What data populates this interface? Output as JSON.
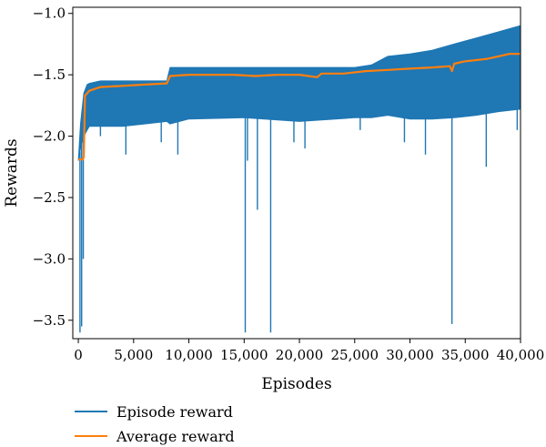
{
  "chart_data": {
    "type": "line",
    "title": "",
    "xlabel": "Episodes",
    "ylabel": "Rewards",
    "xlim": [
      -500,
      40000
    ],
    "ylim": [
      -3.65,
      -0.95
    ],
    "xticks": [
      0,
      5000,
      10000,
      15000,
      20000,
      25000,
      30000,
      35000,
      40000
    ],
    "xtick_labels": [
      "0",
      "5,000",
      "10,000",
      "15,000",
      "20,000",
      "25,000",
      "30,000",
      "35,000",
      "40,000"
    ],
    "yticks": [
      -1.0,
      -1.5,
      -2.0,
      -2.5,
      -3.0,
      -3.5
    ],
    "ytick_labels": [
      "−1.0",
      "−1.5",
      "−2.0",
      "−2.5",
      "−3.0",
      "−3.5"
    ],
    "grid": false,
    "legend": {
      "position": "bottom-left-outside"
    },
    "series": [
      {
        "name": "Episode reward",
        "color": "#1f77b4",
        "band": {
          "x": [
            0,
            200,
            500,
            800,
            1000,
            2000,
            4000,
            6000,
            8000,
            8300,
            10000,
            15000,
            20000,
            25000,
            26500,
            28000,
            30000,
            32000,
            34000,
            36000,
            38000,
            40000
          ],
          "upper": [
            -2.2,
            -1.9,
            -1.65,
            -1.58,
            -1.57,
            -1.55,
            -1.55,
            -1.55,
            -1.55,
            -1.44,
            -1.44,
            -1.44,
            -1.44,
            -1.44,
            -1.42,
            -1.35,
            -1.33,
            -1.3,
            -1.25,
            -1.2,
            -1.15,
            -1.1
          ],
          "lower": [
            -2.2,
            -2.1,
            -2.0,
            -1.95,
            -1.92,
            -1.92,
            -1.92,
            -1.9,
            -1.88,
            -1.9,
            -1.86,
            -1.85,
            -1.88,
            -1.85,
            -1.85,
            -1.83,
            -1.86,
            -1.86,
            -1.85,
            -1.83,
            -1.8,
            -1.78
          ]
        },
        "spikes": [
          {
            "x": 150,
            "y": -3.6
          },
          {
            "x": 300,
            "y": -3.55
          },
          {
            "x": 450,
            "y": -3.0
          },
          {
            "x": 2000,
            "y": -2.0
          },
          {
            "x": 4300,
            "y": -2.15
          },
          {
            "x": 7500,
            "y": -2.05
          },
          {
            "x": 9000,
            "y": -2.15
          },
          {
            "x": 15100,
            "y": -3.6
          },
          {
            "x": 15300,
            "y": -2.2
          },
          {
            "x": 16200,
            "y": -2.6
          },
          {
            "x": 17400,
            "y": -3.6
          },
          {
            "x": 19500,
            "y": -2.05
          },
          {
            "x": 20500,
            "y": -2.1
          },
          {
            "x": 25500,
            "y": -1.95
          },
          {
            "x": 29500,
            "y": -2.05
          },
          {
            "x": 31400,
            "y": -2.15
          },
          {
            "x": 33800,
            "y": -3.53
          },
          {
            "x": 36900,
            "y": -2.25
          },
          {
            "x": 39700,
            "y": -1.95
          }
        ]
      },
      {
        "name": "Average reward",
        "color": "#ff7f0e",
        "points": [
          [
            0,
            -2.19
          ],
          [
            400,
            -2.19
          ],
          [
            500,
            -2.17
          ],
          [
            600,
            -1.67
          ],
          [
            800,
            -1.65
          ],
          [
            1000,
            -1.63
          ],
          [
            2000,
            -1.6
          ],
          [
            4000,
            -1.59
          ],
          [
            6000,
            -1.58
          ],
          [
            8000,
            -1.57
          ],
          [
            8300,
            -1.51
          ],
          [
            10000,
            -1.5
          ],
          [
            12000,
            -1.5
          ],
          [
            14000,
            -1.5
          ],
          [
            16000,
            -1.51
          ],
          [
            18000,
            -1.5
          ],
          [
            20000,
            -1.5
          ],
          [
            21600,
            -1.52
          ],
          [
            22000,
            -1.49
          ],
          [
            24000,
            -1.49
          ],
          [
            26000,
            -1.47
          ],
          [
            28000,
            -1.46
          ],
          [
            30000,
            -1.45
          ],
          [
            32000,
            -1.44
          ],
          [
            33600,
            -1.43
          ],
          [
            33800,
            -1.47
          ],
          [
            34000,
            -1.41
          ],
          [
            35000,
            -1.39
          ],
          [
            36000,
            -1.38
          ],
          [
            37000,
            -1.37
          ],
          [
            38000,
            -1.35
          ],
          [
            39000,
            -1.33
          ],
          [
            40000,
            -1.33
          ]
        ]
      }
    ]
  }
}
